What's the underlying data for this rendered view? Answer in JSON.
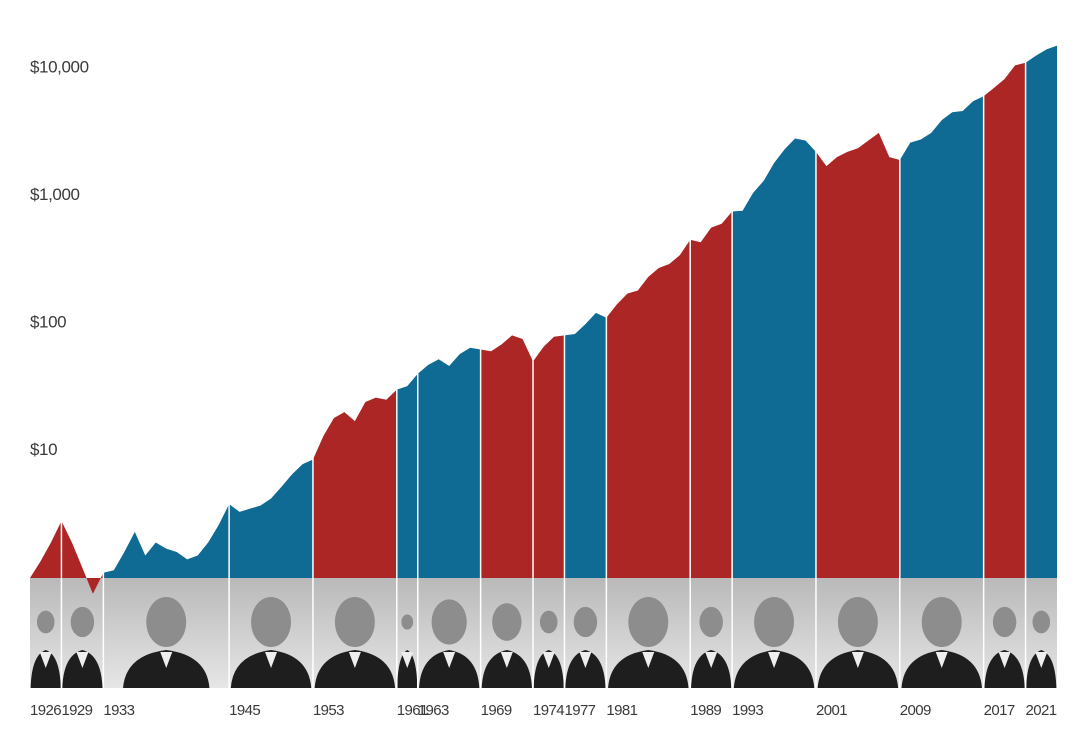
{
  "chart_data": {
    "type": "area",
    "log_scale": true,
    "ylim": [
      1,
      16000
    ],
    "yticks": [
      {
        "value": 10,
        "label": "$10"
      },
      {
        "value": 100,
        "label": "$100"
      },
      {
        "value": 1000,
        "label": "$1,000"
      },
      {
        "value": 10000,
        "label": "$10,000"
      }
    ],
    "xlim": [
      1926,
      2024
    ],
    "xticks": [
      1926,
      1929,
      1933,
      1945,
      1953,
      1961,
      1963,
      1969,
      1974,
      1977,
      1981,
      1989,
      1993,
      2001,
      2009,
      2017,
      2021
    ],
    "segment_colors": [
      "#ab2624",
      "#ab2624",
      "#0f6b93",
      "#0f6b93",
      "#ab2624",
      "#0f6b93",
      "#0f6b93",
      "#ab2624",
      "#ab2624",
      "#0f6b93",
      "#ab2624",
      "#ab2624",
      "#0f6b93",
      "#ab2624",
      "#0f6b93",
      "#ab2624",
      "#0f6b93"
    ],
    "x": [
      1926,
      1927,
      1928,
      1929,
      1930,
      1931,
      1932,
      1933,
      1934,
      1935,
      1936,
      1937,
      1938,
      1939,
      1940,
      1941,
      1942,
      1943,
      1944,
      1945,
      1946,
      1947,
      1948,
      1949,
      1950,
      1951,
      1952,
      1953,
      1954,
      1955,
      1956,
      1957,
      1958,
      1959,
      1960,
      1961,
      1962,
      1963,
      1964,
      1965,
      1966,
      1967,
      1968,
      1969,
      1970,
      1971,
      1972,
      1973,
      1974,
      1975,
      1976,
      1977,
      1978,
      1979,
      1980,
      1981,
      1982,
      1983,
      1984,
      1985,
      1986,
      1987,
      1988,
      1989,
      1990,
      1991,
      1992,
      1993,
      1994,
      1995,
      1996,
      1997,
      1998,
      1999,
      2000,
      2001,
      2002,
      2003,
      2004,
      2005,
      2006,
      2007,
      2008,
      2009,
      2010,
      2011,
      2012,
      2013,
      2014,
      2015,
      2016,
      2017,
      2018,
      2019,
      2020,
      2021,
      2022,
      2023,
      2024
    ],
    "values": [
      1.0,
      1.35,
      1.9,
      2.8,
      1.9,
      1.2,
      0.75,
      1.1,
      1.15,
      1.6,
      2.3,
      1.5,
      1.9,
      1.7,
      1.6,
      1.4,
      1.5,
      1.9,
      2.6,
      3.8,
      3.3,
      3.5,
      3.7,
      4.2,
      5.2,
      6.5,
      7.8,
      8.5,
      13,
      18,
      20,
      17,
      24,
      26,
      25,
      30,
      32,
      40,
      47,
      52,
      46,
      57,
      64,
      62,
      60,
      68,
      80,
      75,
      50,
      65,
      78,
      80,
      82,
      98,
      120,
      110,
      140,
      170,
      180,
      230,
      270,
      290,
      340,
      450,
      430,
      560,
      600,
      750,
      760,
      1050,
      1300,
      1800,
      2300,
      2800,
      2700,
      2200,
      1700,
      2000,
      2200,
      2350,
      2700,
      3100,
      2000,
      1900,
      2600,
      2750,
      3100,
      3900,
      4500,
      4600,
      5500,
      6000,
      7000,
      8200,
      10500,
      11000,
      12500,
      14000,
      15000
    ]
  }
}
